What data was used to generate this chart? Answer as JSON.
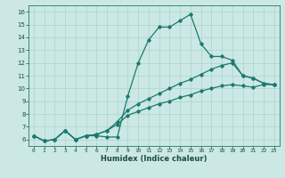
{
  "xlabel": "Humidex (Indice chaleur)",
  "xlim": [
    -0.5,
    23.5
  ],
  "ylim": [
    5.5,
    16.5
  ],
  "yticks": [
    6,
    7,
    8,
    9,
    10,
    11,
    12,
    13,
    14,
    15,
    16
  ],
  "xticks": [
    0,
    1,
    2,
    3,
    4,
    5,
    6,
    7,
    8,
    9,
    10,
    11,
    12,
    13,
    14,
    15,
    16,
    17,
    18,
    19,
    20,
    21,
    22,
    23
  ],
  "line_color": "#1a7a6e",
  "bg_color": "#cce8e4",
  "grid_color": "#a8d4cf",
  "lines": [
    {
      "x": [
        0,
        1,
        2,
        3,
        4,
        5,
        6,
        7,
        8,
        9,
        10,
        11,
        12,
        13,
        14,
        15,
        16,
        17,
        18,
        19,
        20,
        21,
        22,
        23
      ],
      "y": [
        6.3,
        5.9,
        6.0,
        6.7,
        6.0,
        6.3,
        6.3,
        6.2,
        6.2,
        9.4,
        12.0,
        13.8,
        14.8,
        14.8,
        15.3,
        15.8,
        13.5,
        12.5,
        12.5,
        12.2,
        11.0,
        10.8,
        10.4,
        10.3
      ]
    },
    {
      "x": [
        0,
        1,
        2,
        3,
        4,
        5,
        6,
        7,
        8,
        9,
        10,
        11,
        12,
        13,
        14,
        15,
        16,
        17,
        18,
        19,
        20,
        21,
        22,
        23
      ],
      "y": [
        6.3,
        5.9,
        6.0,
        6.7,
        6.0,
        6.3,
        6.4,
        6.7,
        7.4,
        8.3,
        8.8,
        9.2,
        9.6,
        10.0,
        10.4,
        10.7,
        11.1,
        11.5,
        11.8,
        12.0,
        11.0,
        10.8,
        10.4,
        10.3
      ]
    },
    {
      "x": [
        0,
        1,
        2,
        3,
        4,
        5,
        6,
        7,
        8,
        9,
        10,
        11,
        12,
        13,
        14,
        15,
        16,
        17,
        18,
        19,
        20,
        21,
        22,
        23
      ],
      "y": [
        6.3,
        5.9,
        6.0,
        6.7,
        6.0,
        6.3,
        6.4,
        6.7,
        7.2,
        7.9,
        8.2,
        8.5,
        8.8,
        9.0,
        9.3,
        9.5,
        9.8,
        10.0,
        10.2,
        10.3,
        10.2,
        10.1,
        10.3,
        10.3
      ]
    }
  ]
}
